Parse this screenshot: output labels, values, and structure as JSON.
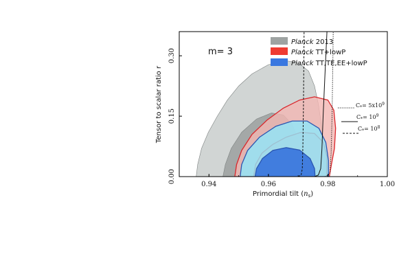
{
  "chart_data": {
    "type": "contour",
    "annotation": "m= 3",
    "xlabel": "Primordial tilt (n_s)",
    "xlabel_main": "Primordial tilt (",
    "xlabel_var": "n",
    "xlabel_sub": "s",
    "xlabel_end": ")",
    "ylabel": "Tensor to scalar ratio r",
    "xlim": [
      0.93,
      1.0
    ],
    "ylim": [
      0.0,
      0.36
    ],
    "x_ticks": [
      0.94,
      0.96,
      0.98,
      1.0
    ],
    "x_tick_labels": [
      "0.94",
      "0.96",
      "0.98",
      "1.00"
    ],
    "y_ticks": [
      0.0,
      0.15,
      0.3
    ],
    "y_tick_labels": [
      "0.00",
      "0.15",
      "0.30"
    ],
    "legend_placement": "top-right",
    "series": [
      {
        "name_italic": "Planck",
        "name_rest": " 2013",
        "color_outer": "#c9cecd",
        "color_inner": "#9ea3a2",
        "edge": "#7c8180",
        "contour_95": [
          [
            0.9357,
            0.0
          ],
          [
            0.9362,
            0.03
          ],
          [
            0.9375,
            0.07
          ],
          [
            0.9398,
            0.11
          ],
          [
            0.9428,
            0.15
          ],
          [
            0.9462,
            0.19
          ],
          [
            0.95,
            0.225
          ],
          [
            0.9545,
            0.255
          ],
          [
            0.96,
            0.278
          ],
          [
            0.9655,
            0.288
          ],
          [
            0.97,
            0.283
          ],
          [
            0.9735,
            0.262
          ],
          [
            0.9755,
            0.225
          ],
          [
            0.9768,
            0.18
          ],
          [
            0.9778,
            0.13
          ],
          [
            0.9787,
            0.08
          ],
          [
            0.9793,
            0.03
          ],
          [
            0.9795,
            0.0
          ]
        ],
        "contour_68": [
          [
            0.9447,
            0.0
          ],
          [
            0.9455,
            0.03
          ],
          [
            0.9475,
            0.07
          ],
          [
            0.951,
            0.11
          ],
          [
            0.956,
            0.143
          ],
          [
            0.961,
            0.158
          ],
          [
            0.965,
            0.153
          ],
          [
            0.968,
            0.13
          ],
          [
            0.97,
            0.09
          ],
          [
            0.9712,
            0.05
          ],
          [
            0.972,
            0.0
          ]
        ]
      },
      {
        "name_italic": "Planck",
        "name_rest": " TT+lowP",
        "color_outer": "#f3b6b3",
        "color_inner": "#f0a9a6",
        "edge": "#d9262b",
        "legend_color": "#ef3b32",
        "contour_95": [
          [
            0.9487,
            0.0
          ],
          [
            0.9493,
            0.03
          ],
          [
            0.951,
            0.065
          ],
          [
            0.9545,
            0.105
          ],
          [
            0.9595,
            0.14
          ],
          [
            0.965,
            0.17
          ],
          [
            0.9705,
            0.19
          ],
          [
            0.9755,
            0.198
          ],
          [
            0.98,
            0.19
          ],
          [
            0.982,
            0.165
          ],
          [
            0.9826,
            0.12
          ],
          [
            0.9822,
            0.07
          ],
          [
            0.9812,
            0.03
          ],
          [
            0.9805,
            0.0
          ]
        ],
        "contour_68": [
          [
            0.955,
            0.0
          ],
          [
            0.9557,
            0.03
          ],
          [
            0.9578,
            0.058
          ],
          [
            0.9615,
            0.08
          ],
          [
            0.966,
            0.098
          ],
          [
            0.971,
            0.11
          ],
          [
            0.9755,
            0.107
          ],
          [
            0.9785,
            0.085
          ],
          [
            0.9797,
            0.05
          ],
          [
            0.9797,
            0.02
          ],
          [
            0.9795,
            0.0
          ]
        ]
      },
      {
        "name_italic": "Planck",
        "name_rest": " TT,TE,EE+lowP",
        "color_outer": "#8fe7fb",
        "color_inner": "#3c78dd",
        "edge": "#2a55b0",
        "legend_color": "#3a78e0",
        "contour_95": [
          [
            0.9505,
            0.0
          ],
          [
            0.951,
            0.03
          ],
          [
            0.953,
            0.065
          ],
          [
            0.957,
            0.098
          ],
          [
            0.9625,
            0.125
          ],
          [
            0.968,
            0.138
          ],
          [
            0.973,
            0.138
          ],
          [
            0.977,
            0.12
          ],
          [
            0.9793,
            0.085
          ],
          [
            0.9802,
            0.04
          ],
          [
            0.9802,
            0.0
          ]
        ],
        "contour_68": [
          [
            0.9555,
            0.0
          ],
          [
            0.956,
            0.02
          ],
          [
            0.958,
            0.045
          ],
          [
            0.9615,
            0.065
          ],
          [
            0.966,
            0.072
          ],
          [
            0.9705,
            0.066
          ],
          [
            0.974,
            0.045
          ],
          [
            0.9755,
            0.02
          ],
          [
            0.9757,
            0.0
          ]
        ]
      }
    ],
    "cstar_lines": [
      {
        "label": "C*= 5x10^9",
        "label_main": "C",
        "label_sub": "*",
        "label_value": "= 5x10",
        "label_exp": "9",
        "style": "dotted",
        "points": [
          [
            0.979,
            0.0
          ],
          [
            0.98,
            0.003
          ],
          [
            0.9807,
            0.01
          ],
          [
            0.9811,
            0.06
          ],
          [
            0.9814,
            0.15
          ],
          [
            0.9816,
            0.25
          ],
          [
            0.9818,
            0.36
          ]
        ]
      },
      {
        "label": "C*= 10^9",
        "label_main": "C",
        "label_sub": "*",
        "label_value": "= 10",
        "label_exp": "9",
        "style": "solid",
        "points": [
          [
            0.9755,
            0.0
          ],
          [
            0.9768,
            0.004
          ],
          [
            0.9776,
            0.02
          ],
          [
            0.978,
            0.07
          ],
          [
            0.9784,
            0.15
          ],
          [
            0.979,
            0.25
          ],
          [
            0.9797,
            0.36
          ]
        ]
      },
      {
        "label": "C*= 10^8",
        "label_main": "C",
        "label_sub": "*",
        "label_value": "= 10",
        "label_exp": "8",
        "style": "dashed",
        "points": [
          [
            0.97,
            0.0
          ],
          [
            0.971,
            0.004
          ],
          [
            0.9714,
            0.02
          ],
          [
            0.9716,
            0.08
          ],
          [
            0.9718,
            0.18
          ],
          [
            0.9719,
            0.28
          ],
          [
            0.972,
            0.36
          ]
        ]
      }
    ]
  }
}
